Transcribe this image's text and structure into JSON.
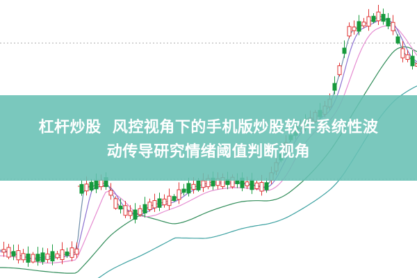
{
  "banner": {
    "lines": [
      "杠杆炒股  风控视角下的手机版炒股软件系统性波",
      "动传导研究情绪阈值判断视角"
    ]
  }
}
